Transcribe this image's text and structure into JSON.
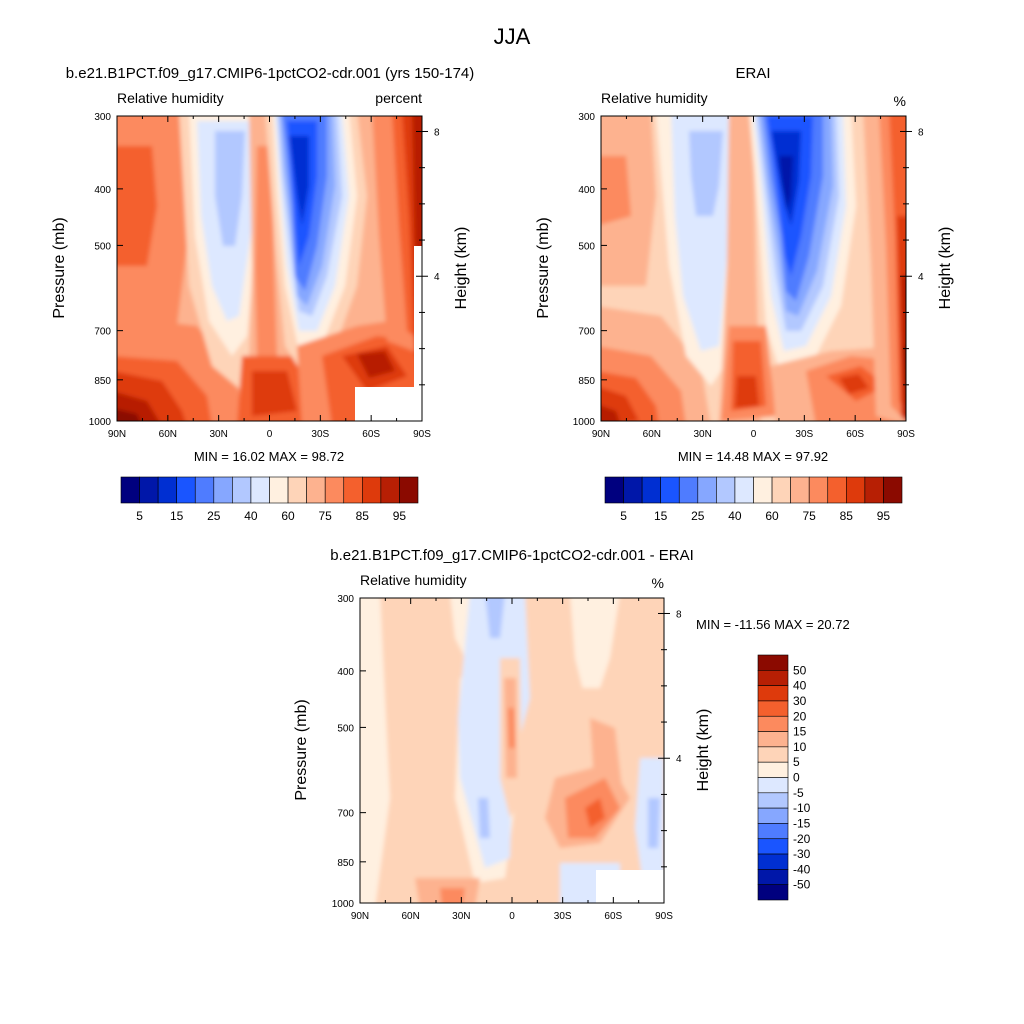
{
  "figure": {
    "title": "JJA"
  },
  "colors": {
    "rh_levels": [
      "#00007f",
      "#0017a9",
      "#002fd2",
      "#1a55ff",
      "#4f7cff",
      "#86a7ff",
      "#b2c8ff",
      "#dde8ff",
      "#fff0e0",
      "#fed4b8",
      "#fdb28f",
      "#fc8a5e",
      "#f4602d",
      "#de3a0c",
      "#b71f04",
      "#8b0a00"
    ],
    "diff_levels": [
      "#00007f",
      "#0017a9",
      "#002fd2",
      "#1a55ff",
      "#4f7cff",
      "#86a7ff",
      "#b2c8ff",
      "#dde8ff",
      "#fff0e0",
      "#fed4b8",
      "#fdb28f",
      "#fc8a5e",
      "#f4602d",
      "#de3a0c",
      "#b71f04",
      "#8b0a00"
    ]
  },
  "chart_data": [
    {
      "type": "heatmap",
      "panel": "model",
      "title": "b.e21.B1PCT.f09_g17.CMIP6-1pctCO2-cdr.001 (yrs 150-174)",
      "left_label": "Relative humidity",
      "right_label": "percent",
      "ylabel": "Pressure (mb)",
      "y2label": "Height (km)",
      "x_ticks": [
        "90N",
        "60N",
        "30N",
        "0",
        "30S",
        "60S",
        "90S"
      ],
      "x_values": [
        90,
        60,
        30,
        0,
        -30,
        -60,
        -90
      ],
      "y_ticks": [
        "300",
        "400",
        "500",
        "700",
        "850",
        "1000"
      ],
      "y_values": [
        300,
        400,
        500,
        700,
        850,
        1000
      ],
      "ylim": [
        300,
        1000
      ],
      "y2_ticks": [
        "8",
        "4"
      ],
      "y2_values": [
        8,
        4
      ],
      "min_max_text": "MIN =  16.02  MAX =  98.72",
      "min": 16.02,
      "max": 98.72,
      "colorbar_labels": [
        "5",
        "15",
        "25",
        "40",
        "60",
        "75",
        "85",
        "95"
      ],
      "colorbar_levels": [
        5,
        10,
        15,
        20,
        25,
        30,
        40,
        50,
        60,
        70,
        75,
        80,
        85,
        90,
        95
      ]
    },
    {
      "type": "heatmap",
      "panel": "obs",
      "title": "ERAI",
      "left_label": "Relative humidity",
      "right_label": "%",
      "ylabel": "Pressure (mb)",
      "y2label": "Height (km)",
      "x_ticks": [
        "90N",
        "60N",
        "30N",
        "0",
        "30S",
        "60S",
        "90S"
      ],
      "x_values": [
        90,
        60,
        30,
        0,
        -30,
        -60,
        -90
      ],
      "y_ticks": [
        "300",
        "400",
        "500",
        "700",
        "850",
        "1000"
      ],
      "y_values": [
        300,
        400,
        500,
        700,
        850,
        1000
      ],
      "ylim": [
        300,
        1000
      ],
      "y2_ticks": [
        "8",
        "4"
      ],
      "y2_values": [
        8,
        4
      ],
      "min_max_text": "MIN =  14.48  MAX =  97.92",
      "min": 14.48,
      "max": 97.92,
      "colorbar_labels": [
        "5",
        "15",
        "25",
        "40",
        "60",
        "75",
        "85",
        "95"
      ],
      "colorbar_levels": [
        5,
        10,
        15,
        20,
        25,
        30,
        40,
        50,
        60,
        70,
        75,
        80,
        85,
        90,
        95
      ]
    },
    {
      "type": "heatmap",
      "panel": "diff",
      "title": "b.e21.B1PCT.f09_g17.CMIP6-1pctCO2-cdr.001 - ERAI",
      "left_label": "Relative humidity",
      "right_label": "%",
      "ylabel": "Pressure (mb)",
      "y2label": "Height (km)",
      "x_ticks": [
        "90N",
        "60N",
        "30N",
        "0",
        "30S",
        "60S",
        "90S"
      ],
      "x_values": [
        90,
        60,
        30,
        0,
        -30,
        -60,
        -90
      ],
      "y_ticks": [
        "300",
        "400",
        "500",
        "700",
        "850",
        "1000"
      ],
      "y_values": [
        300,
        400,
        500,
        700,
        850,
        1000
      ],
      "ylim": [
        300,
        1000
      ],
      "y2_ticks": [
        "8",
        "4"
      ],
      "y2_values": [
        8,
        4
      ],
      "min_max_text": "MIN = -11.56  MAX =  20.72",
      "min": -11.56,
      "max": 20.72,
      "colorbar_labels": [
        "50",
        "40",
        "30",
        "20",
        "15",
        "10",
        "5",
        "0",
        "-5",
        "-10",
        "-15",
        "-20",
        "-30",
        "-40",
        "-50"
      ],
      "colorbar_levels": [
        -50,
        -40,
        -30,
        -20,
        -15,
        -10,
        -5,
        0,
        5,
        10,
        15,
        20,
        30,
        40,
        50
      ]
    }
  ]
}
